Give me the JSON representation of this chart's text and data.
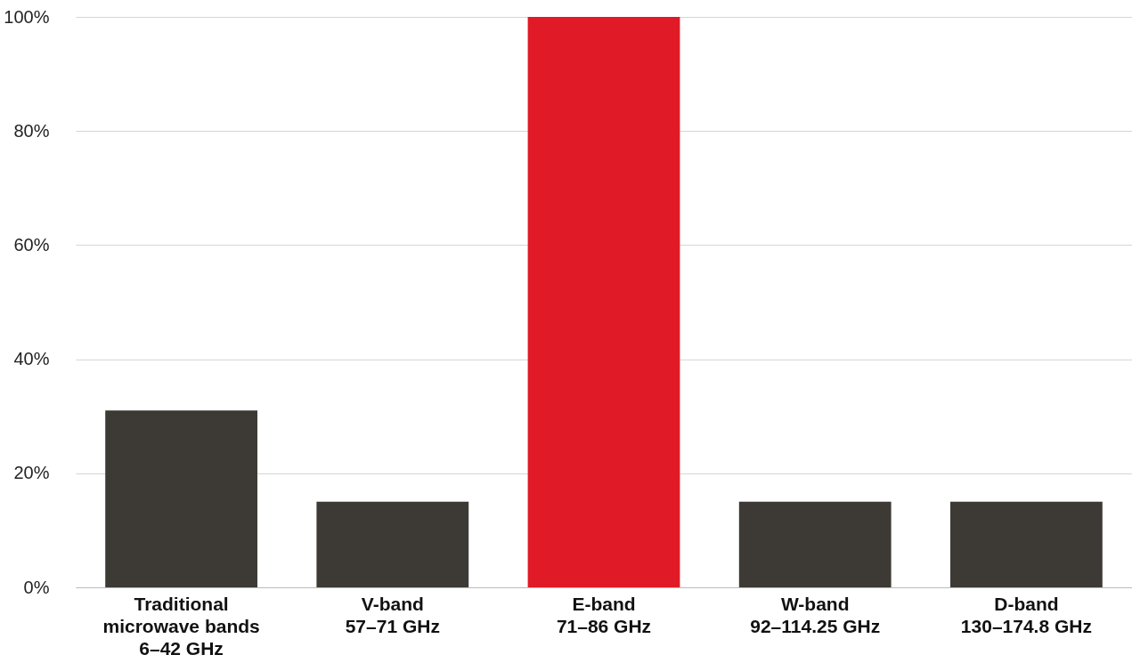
{
  "chart_data": {
    "type": "bar",
    "categories": [
      "Traditional microwave bands\n6–42 GHz",
      "V-band\n57–71 GHz",
      "E-band\n71–86 GHz",
      "W-band\n92–114.25 GHz",
      "D-band\n130–174.8 GHz"
    ],
    "values": [
      31,
      15,
      100,
      15,
      15
    ],
    "colors": [
      "#3d3935",
      "#3d3935",
      "#e01a27",
      "#3d3935",
      "#3d3935"
    ],
    "ylim": [
      0,
      100
    ],
    "yticks": [
      {
        "value": 0,
        "label": "0%"
      },
      {
        "value": 20,
        "label": "20%"
      },
      {
        "value": 40,
        "label": "40%"
      },
      {
        "value": 60,
        "label": "60%"
      },
      {
        "value": 80,
        "label": "80%"
      },
      {
        "value": 100,
        "label": "100%"
      }
    ],
    "grid": "y"
  }
}
